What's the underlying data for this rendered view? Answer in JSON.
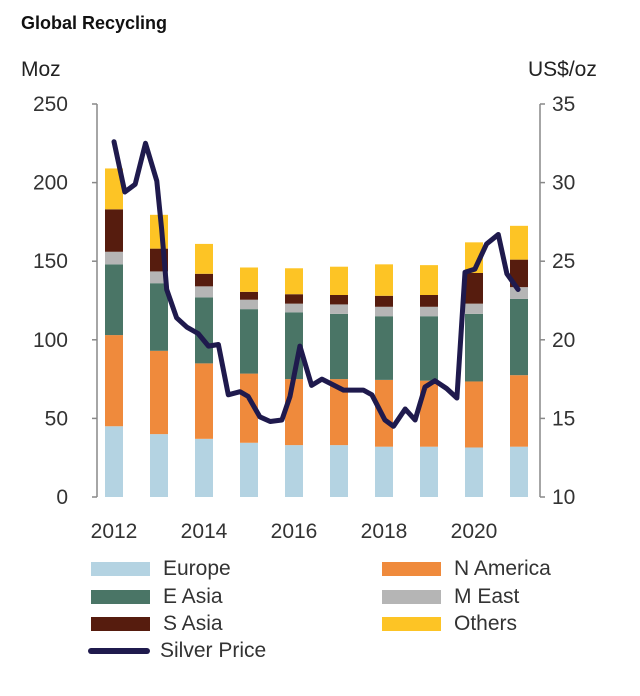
{
  "title": "Global Recycling",
  "left_unit": "Moz",
  "right_unit": "US$/oz",
  "chart_data": {
    "type": "bar",
    "stacked": true,
    "title": "Global Recycling",
    "ylabel": "Moz",
    "y2label": "US$/oz",
    "ylim": [
      0,
      250
    ],
    "y2lim": [
      10,
      35
    ],
    "yticks": [
      0,
      50,
      100,
      150,
      200,
      250
    ],
    "y2ticks": [
      10,
      15,
      20,
      25,
      30,
      35
    ],
    "xticks": [
      "2012",
      "2014",
      "2016",
      "2018",
      "2020"
    ],
    "categories": [
      "2012",
      "2013",
      "2014",
      "2015",
      "2016",
      "2017",
      "2018",
      "2019",
      "2020",
      "2021"
    ],
    "grid": false,
    "legend_position": "bottom",
    "series": [
      {
        "name": "Europe",
        "color": "#b4d3e2",
        "values": [
          45,
          40,
          37,
          34.5,
          33,
          33,
          32,
          32,
          31.5,
          32
        ]
      },
      {
        "name": "N America",
        "color": "#ef8a3c",
        "values": [
          58,
          53,
          48,
          44,
          42,
          42,
          42.5,
          42,
          42,
          45.5
        ]
      },
      {
        "name": "E Asia",
        "color": "#4a7566",
        "values": [
          45,
          43,
          42,
          41,
          42.5,
          41.5,
          40.5,
          41,
          43,
          48.5
        ]
      },
      {
        "name": "M East",
        "color": "#b5b5b5",
        "values": [
          8,
          7.5,
          7,
          6,
          5.5,
          6,
          6,
          6,
          6.5,
          7.5
        ]
      },
      {
        "name": "S Asia",
        "color": "#561c0e",
        "values": [
          27,
          14.5,
          8,
          5,
          6,
          6,
          7,
          7.5,
          19.5,
          17.5
        ]
      },
      {
        "name": "Others",
        "color": "#fdc425",
        "values": [
          26,
          21.5,
          19,
          15.5,
          16.5,
          18,
          20,
          19,
          19.5,
          21.5
        ]
      }
    ],
    "line_series": {
      "name": "Silver Price",
      "color": "#1f1a4d",
      "axis": "right",
      "x": [
        2012.0,
        2012.24,
        2012.47,
        2012.7,
        2012.95,
        2013.06,
        2013.17,
        2013.39,
        2013.62,
        2013.87,
        2014.1,
        2014.32,
        2014.54,
        2014.8,
        2014.98,
        2015.24,
        2015.47,
        2015.73,
        2015.91,
        2016.13,
        2016.39,
        2016.62,
        2017.1,
        2017.54,
        2017.73,
        2018.02,
        2018.21,
        2018.47,
        2018.69,
        2018.91,
        2019.13,
        2019.39,
        2019.62,
        2019.8,
        2020.02,
        2020.28,
        2020.54,
        2020.73,
        2020.98
      ],
      "y": [
        32.6,
        29.4,
        29.9,
        32.5,
        30.1,
        27.0,
        23.2,
        21.4,
        20.8,
        20.4,
        19.6,
        19.7,
        16.5,
        16.7,
        16.4,
        15.1,
        14.8,
        14.9,
        16.4,
        19.6,
        17.1,
        17.5,
        16.8,
        16.8,
        16.5,
        14.9,
        14.5,
        15.6,
        14.9,
        17.0,
        17.4,
        16.9,
        16.3,
        24.3,
        24.5,
        26.1,
        26.7,
        24.2,
        23.2
      ]
    }
  }
}
